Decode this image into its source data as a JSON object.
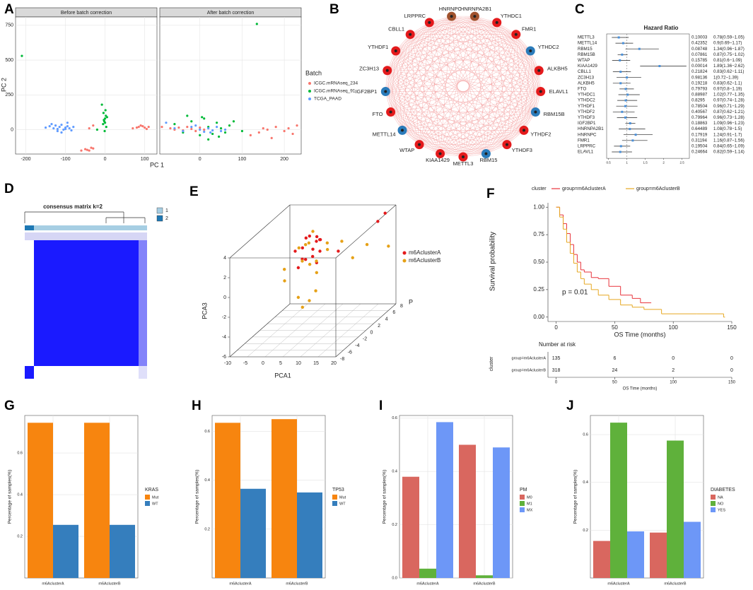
{
  "chart_data": [
    {
      "type": "scatter_facets",
      "label": "A",
      "xlabel": "PC 1",
      "ylabel": "PC 2",
      "legend_title": "Batch",
      "ylim": [
        -175,
        810
      ],
      "yticks": [
        0,
        250,
        500,
        750
      ],
      "grid": true,
      "series": [
        {
          "name": "ICGC.mRNAseq_234",
          "color": "#f8766d"
        },
        {
          "name": "ICGC.mRNAseq_91",
          "color": "#00ba38"
        },
        {
          "name": "TCGA_PAAD",
          "color": "#619cff"
        }
      ],
      "facets": [
        {
          "title": "Before batch correction",
          "xlim": [
            -226,
            131
          ],
          "xticks": [
            -200,
            -100,
            0,
            100
          ],
          "points": [
            {
              "x": [
                -60,
                -50,
                -40,
                -30,
                -45,
                -35,
                -40,
                -30,
                70,
                85,
                95,
                100,
                110,
                105,
                90,
                80
              ],
              "y": [
                -150,
                -140,
                -150,
                -135,
                -145,
                -130,
                10,
                30,
                10,
                20,
                25,
                15,
                20,
                5,
                30,
                15
              ]
            },
            {
              "x": [
                -210,
                -5,
                -2,
                0,
                2,
                -4,
                1,
                3,
                -3,
                0,
                -20,
                -1,
                5,
                -8
              ],
              "y": [
                530,
                40,
                60,
                80,
                100,
                120,
                140,
                20,
                70,
                50,
                0,
                -10,
                90,
                180
              ]
            },
            {
              "x": [
                -150,
                -140,
                -130,
                -125,
                -120,
                -115,
                -110,
                -105,
                -100,
                -95,
                -90,
                -85,
                -80,
                -135,
                -110,
                -95,
                -120,
                -100
              ],
              "y": [
                15,
                25,
                10,
                30,
                5,
                20,
                35,
                0,
                15,
                25,
                10,
                -5,
                20,
                40,
                -20,
                50,
                -10,
                5
              ]
            }
          ]
        },
        {
          "title": "After batch correction",
          "xlim": [
            -95,
            240
          ],
          "xticks": [
            0,
            100,
            200
          ],
          "points": [
            {
              "x": [
                -90,
                -70,
                -60,
                -50,
                -40,
                -30,
                -20,
                -10,
                0,
                10,
                120,
                140,
                160,
                180,
                200,
                210,
                220,
                230,
                170,
                150
              ],
              "y": [
                20,
                10,
                0,
                15,
                -5,
                20,
                5,
                -10,
                15,
                0,
                -40,
                -20,
                0,
                20,
                -10,
                10,
                -30,
                30,
                -60,
                10
              ]
            },
            {
              "x": [
                -60,
                -40,
                -20,
                0,
                10,
                20,
                30,
                40,
                50,
                60,
                70,
                80,
                100,
                -30,
                20,
                135,
                5,
                45
              ],
              "y": [
                40,
                -20,
                60,
                -40,
                80,
                20,
                -30,
                50,
                10,
                -20,
                30,
                60,
                -10,
                100,
                -70,
                760,
                90,
                -50
              ]
            },
            {
              "x": [
                -80,
                -60,
                -40,
                -20,
                0,
                10,
                20,
                30,
                40,
                50,
                60,
                -10,
                25
              ],
              "y": [
                50,
                10,
                -10,
                20,
                0,
                -15,
                10,
                -5,
                20,
                -10,
                0,
                30,
                -20
              ]
            }
          ]
        }
      ]
    },
    {
      "type": "network",
      "label": "B",
      "nodes": [
        {
          "name": "HNRNPC",
          "color": "#a0522d"
        },
        {
          "name": "HNRNPA2B1",
          "color": "#a0522d"
        },
        {
          "name": "YTHDC1",
          "color": "#e41a1c"
        },
        {
          "name": "FMR1",
          "color": "#e41a1c"
        },
        {
          "name": "YTHDC2",
          "color": "#2b7bba"
        },
        {
          "name": "ALKBH5",
          "color": "#e41a1c"
        },
        {
          "name": "ELAVL1",
          "color": "#e41a1c"
        },
        {
          "name": "RBM15B",
          "color": "#2b7bba"
        },
        {
          "name": "YTHDF2",
          "color": "#e41a1c"
        },
        {
          "name": "YTHDF3",
          "color": "#e41a1c"
        },
        {
          "name": "RBM15",
          "color": "#2b7bba"
        },
        {
          "name": "METTL3",
          "color": "#e41a1c"
        },
        {
          "name": "KIAA1429",
          "color": "#e41a1c"
        },
        {
          "name": "WTAP",
          "color": "#e41a1c"
        },
        {
          "name": "METTL14",
          "color": "#2b7bba"
        },
        {
          "name": "FTO",
          "color": "#e41a1c"
        },
        {
          "name": "IGF2BP1",
          "color": "#2b7bba"
        },
        {
          "name": "ZC3H13",
          "color": "#e41a1c"
        },
        {
          "name": "YTHDF1",
          "color": "#e41a1c"
        },
        {
          "name": "CBLL1",
          "color": "#e41a1c"
        },
        {
          "name": "LRPPRC",
          "color": "#e41a1c"
        }
      ]
    },
    {
      "type": "forest",
      "label": "C",
      "title": "Hazard Ratio",
      "color": "#4a90d9",
      "genes": [
        "METTL3",
        "METTL14",
        "RBM15",
        "RBM15B",
        "WTAP",
        "KIAA1429",
        "CBLL1",
        "ZC3H13",
        "ALKBH5",
        "FTO",
        "YTHDC1",
        "YTHDC2",
        "YTHDF1",
        "YTHDF2",
        "YTHDF3",
        "IGF2BP1",
        "HNRNPA2B1",
        "HNRNPC",
        "FMR1",
        "LRPPRC",
        "ELAVL1"
      ],
      "pvalues": [
        0.10003,
        0.42352,
        0.08748,
        0.07861,
        0.15785,
        0.00014,
        0.21824,
        0.98136,
        0.19218,
        0.79793,
        0.88987,
        0.8295,
        0.78504,
        0.40567,
        0.79964,
        0.18863,
        0.64489,
        0.17919,
        0.31194,
        0.19504,
        0.24664
      ],
      "hr_labels": [
        "0.78(0.59−1.05)",
        "0.9(0.69−1.17)",
        "1.34(0.96−1.87)",
        "0.87(0.75−1.02)",
        "0.81(0.6−1.09)",
        "1.89(1.36−2.62)",
        "0.83(0.62−1.11)",
        "1(0.72−1.39)",
        "0.83(0.62−1.1)",
        "0.97(0.8−1.19)",
        "1.02(0.77−1.35)",
        "0.97(0.74−1.28)",
        "0.96(0.71−1.29)",
        "0.87(0.62−1.21)",
        "0.96(0.73−1.28)",
        "1.09(0.96−1.23)",
        "1.08(0.78−1.5)",
        "1.24(0.91−1.7)",
        "1.16(0.87−1.56)",
        "0.84(0.65−1.09)",
        "0.82(0.59−1.14)"
      ],
      "hr": [
        0.78,
        0.9,
        1.34,
        0.87,
        0.81,
        1.89,
        0.83,
        1,
        0.83,
        0.97,
        1.02,
        0.97,
        0.96,
        0.87,
        0.96,
        1.09,
        1.08,
        1.24,
        1.16,
        0.84,
        0.82
      ],
      "lower": [
        0.59,
        0.69,
        0.96,
        0.75,
        0.6,
        1.36,
        0.62,
        0.72,
        0.62,
        0.8,
        0.77,
        0.74,
        0.71,
        0.62,
        0.73,
        0.96,
        0.78,
        0.91,
        0.87,
        0.65,
        0.59
      ],
      "upper": [
        1.05,
        1.17,
        1.87,
        1.02,
        1.09,
        2.62,
        1.11,
        1.39,
        1.1,
        1.19,
        1.35,
        1.28,
        1.29,
        1.21,
        1.28,
        1.23,
        1.5,
        1.7,
        1.56,
        1.09,
        1.14
      ],
      "xlim": [
        0.45,
        2.7
      ],
      "xticks": [
        0.5,
        1,
        1.5,
        2,
        2.5
      ]
    },
    {
      "type": "heatmap",
      "label": "D",
      "title": "consensus matrix k=2",
      "legend": [
        "1",
        "2"
      ],
      "colors": [
        "#a6cee3",
        "#1f78b4"
      ]
    },
    {
      "type": "scatter3d",
      "label": "E",
      "xlabel": "PCA1",
      "ylabel": "PCA3",
      "zlabel": "P",
      "xlim": [
        -10,
        20
      ],
      "xticks": [
        -10,
        -5,
        0,
        5,
        10,
        15,
        20
      ],
      "ylim": [
        -6,
        4
      ],
      "yticks": [
        -6,
        -4,
        -2,
        0,
        2,
        4
      ],
      "zlim": [
        -8,
        8
      ],
      "zticks": [
        -8,
        -6,
        -4,
        -2,
        0,
        2,
        4,
        6,
        8
      ],
      "series": [
        {
          "name": "m6AclusterA",
          "color": "#e41a1c",
          "x": [
            0,
            2,
            4,
            5,
            6,
            3,
            1,
            7,
            8,
            5,
            4,
            2,
            6,
            3,
            5,
            9,
            18,
            17
          ],
          "y": [
            2,
            3,
            1.5,
            2.5,
            3,
            1,
            2,
            2,
            3.5,
            0.5,
            2.8,
            1.2,
            1.8,
            3.2,
            2.2,
            1,
            3.5,
            3
          ],
          "z": [
            0,
            1,
            -1,
            2,
            0,
            -2,
            1,
            0,
            -1,
            1,
            2,
            0,
            -1,
            1,
            0,
            3,
            7,
            6
          ]
        },
        {
          "name": "m6AclusterB",
          "color": "#e6a117",
          "x": [
            -3,
            0,
            2,
            4,
            6,
            8,
            3,
            5,
            1,
            7,
            -2,
            4,
            10,
            12,
            6,
            2,
            5,
            15,
            20,
            9
          ],
          "y": [
            -1,
            2,
            0,
            3,
            1,
            2.5,
            -2,
            4,
            -4,
            1.5,
            0.5,
            -3,
            2,
            0,
            3.5,
            1,
            -0.5,
            1,
            0.5,
            -1
          ],
          "z": [
            0,
            1,
            2,
            -1,
            0,
            1,
            -2,
            0,
            1,
            2,
            -1,
            0,
            3,
            4,
            -2,
            0,
            1,
            5,
            6,
            -3
          ]
        }
      ]
    },
    {
      "type": "km",
      "label": "F",
      "legend_title": "cluster",
      "xlabel": "OS Time (months)",
      "ylabel": "Survival probability",
      "annotation": "p = 0.01",
      "xlim": [
        -7,
        150
      ],
      "xticks": [
        0,
        50,
        100,
        150
      ],
      "ylim": [
        -0.04,
        1.04
      ],
      "yticks": [
        {
          "value": 0,
          "label": "0.00"
        },
        {
          "value": 0.25,
          "label": "0.25"
        },
        {
          "value": 0.5,
          "label": "0.50"
        },
        {
          "value": 0.75,
          "label": "0.75"
        },
        {
          "value": 1,
          "label": "1.00"
        }
      ],
      "series": [
        {
          "name": "group=m6AclusterA",
          "color": "#e8333b",
          "x": [
            0,
            3,
            6,
            9,
            12,
            15,
            18,
            21,
            24,
            30,
            36,
            45,
            55,
            65,
            72,
            80
          ],
          "values": [
            1,
            0.93,
            0.85,
            0.76,
            0.66,
            0.57,
            0.5,
            0.43,
            0.41,
            0.36,
            0.35,
            0.28,
            0.2,
            0.17,
            0.13,
            0.13
          ]
        },
        {
          "name": "group=m6AclusterB",
          "color": "#e6a822",
          "x": [
            0,
            3,
            6,
            9,
            12,
            15,
            18,
            21,
            24,
            30,
            36,
            45,
            55,
            65,
            75,
            90,
            120,
            143
          ],
          "values": [
            1,
            0.91,
            0.8,
            0.68,
            0.58,
            0.49,
            0.41,
            0.35,
            0.3,
            0.25,
            0.2,
            0.16,
            0.11,
            0.09,
            0.07,
            0.03,
            0.03,
            0
          ]
        }
      ],
      "risk_table": {
        "title": "Number at risk",
        "ylabel": "cluster",
        "values": [
          [
            135,
            6,
            0,
            0
          ],
          [
            318,
            24,
            2,
            0
          ]
        ]
      }
    },
    {
      "type": "bar",
      "label": "G",
      "ylabel": "Percentage of samples(%)",
      "legend_title": "KRAS",
      "categories": [
        "m6AclusterA",
        "m6AclusterB"
      ],
      "ylim": [
        0,
        0.78
      ],
      "yticks": [
        0.2,
        0.4,
        0.6
      ],
      "grid": true,
      "series": [
        {
          "name": "Mut",
          "color": "#f7850f",
          "values": [
            0.745,
            0.745
          ]
        },
        {
          "name": "WT",
          "color": "#357ebd",
          "values": [
            0.255,
            0.255
          ]
        }
      ]
    },
    {
      "type": "bar",
      "label": "H",
      "ylabel": "Percentage of samples(%)",
      "legend_title": "TP53",
      "categories": [
        "m6AclusterA",
        "m6AclusterB"
      ],
      "ylim": [
        0,
        0.665
      ],
      "yticks": [
        0.2,
        0.4,
        0.6
      ],
      "grid": true,
      "series": [
        {
          "name": "Mut",
          "color": "#f7850f",
          "values": [
            0.635,
            0.65
          ]
        },
        {
          "name": "WT",
          "color": "#357ebd",
          "values": [
            0.365,
            0.35
          ]
        }
      ]
    },
    {
      "type": "bar",
      "label": "I",
      "ylabel": "Percentage of samples(%)",
      "legend_title": "PM",
      "categories": [
        "m6AclusterA",
        "m6AclusterB"
      ],
      "ylim": [
        0,
        0.61
      ],
      "yticks": [
        {
          "value": 0,
          "label": "0.0"
        },
        0.2,
        0.4,
        0.6
      ],
      "grid": true,
      "series": [
        {
          "name": "M0",
          "color": "#d9675f",
          "values": [
            0.38,
            0.5
          ]
        },
        {
          "name": "M1",
          "color": "#5fb13b",
          "values": [
            0.035,
            0.01
          ]
        },
        {
          "name": "MX",
          "color": "#6d97f7",
          "values": [
            0.585,
            0.49
          ]
        }
      ]
    },
    {
      "type": "bar",
      "label": "J",
      "ylabel": "Percentage of samples(%)",
      "legend_title": "DIABETES",
      "categories": [
        "m6AclusterA",
        "m6AclusterB"
      ],
      "ylim": [
        0,
        0.68
      ],
      "yticks": [
        0.2,
        0.4,
        0.6
      ],
      "grid": true,
      "series": [
        {
          "name": "NA",
          "color": "#d9675f",
          "values": [
            0.155,
            0.19
          ]
        },
        {
          "name": "NO",
          "color": "#5fb13b",
          "values": [
            0.65,
            0.575
          ]
        },
        {
          "name": "YES",
          "color": "#6d97f7",
          "values": [
            0.195,
            0.235
          ]
        }
      ]
    }
  ]
}
